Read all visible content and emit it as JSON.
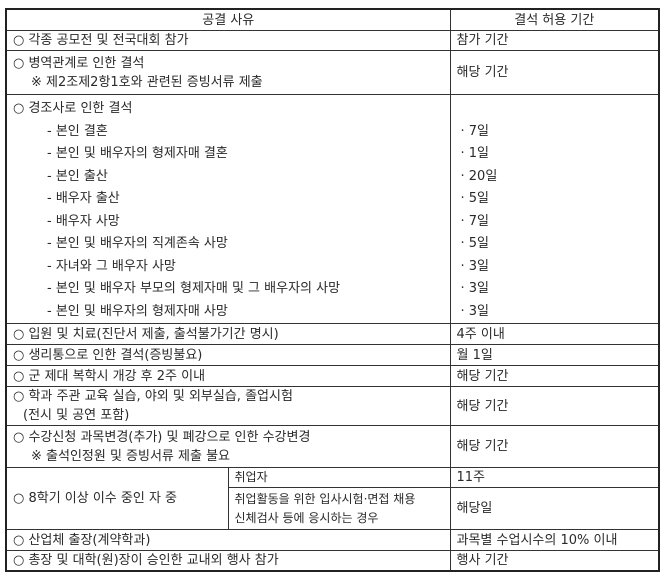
{
  "header": {
    "reason": "공결 사유",
    "period": "결석 허용 기간"
  },
  "rows": {
    "r1": {
      "reason": "○ 각종 공모전 및 전국대회 참가",
      "period": "참가 기간"
    },
    "r2": {
      "reason": "○ 병역관계로 인한 결석",
      "note": "※ 제2조제2항1호와 관련된 증빙서류 제출",
      "period": "해당 기간"
    },
    "r3": {
      "reason": "○ 경조사로 인한 결석",
      "items": [
        {
          "label": "- 본인 결혼",
          "period": "· 7일"
        },
        {
          "label": "- 본인 및 배우자의 형제자매 결혼",
          "period": "· 1일"
        },
        {
          "label": "- 본인 출산",
          "period": "· 20일"
        },
        {
          "label": "- 배우자 출산",
          "period": "· 5일"
        },
        {
          "label": "- 배우자 사망",
          "period": "· 7일"
        },
        {
          "label": "- 본인 및 배우자의 직계존속 사망",
          "period": "· 5일"
        },
        {
          "label": "- 자녀와 그 배우자 사망",
          "period": "· 3일"
        },
        {
          "label": "- 본인 및 배우자 부모의 형제자매 및 그 배우자의 사망",
          "period": "· 3일"
        },
        {
          "label": "- 본인 및 배우자의 형제자매 사망",
          "period": "· 3일"
        }
      ]
    },
    "r4": {
      "reason": "○ 입원 및 치료(진단서 제출, 출석불가기간 명시)",
      "period": "4주 이내"
    },
    "r5": {
      "reason": "○ 생리통으로 인한 결석(증빙불요)",
      "period": "월 1일"
    },
    "r6": {
      "reason": "○ 군 제대 복학시 개강 후 2주 이내",
      "period": "해당 기간"
    },
    "r7": {
      "reason": "○ 학과 주관 교육 실습, 야외 및 외부실습, 졸업시험",
      "note": "(전시 및 공연 포함)",
      "period": "해당 기간"
    },
    "r8": {
      "reason": "○ 수강신청 과목변경(추가) 및 폐강으로 인한 수강변경",
      "note": "※ 출석인정원 및 증빙서류 제출 불요",
      "period": "해당 기간"
    },
    "r9": {
      "reason": "○ 8학기 이상 이수 중인 자 중",
      "sub1": {
        "label": "취업자",
        "period": "11주"
      },
      "sub2": {
        "label1": "취업활동을 위한 입사시험·면접 채용",
        "label2": "신체검사 등에 응시하는 경우",
        "period": "해당일"
      }
    },
    "r10": {
      "reason": "○ 산업체 출장(계약학과)",
      "period": "과목별 수업시수의 10% 이내"
    },
    "r11": {
      "reason": "○ 총장 및 대학(원)장이 승인한 교내외 행사 참가",
      "period": "행사 기간"
    }
  }
}
